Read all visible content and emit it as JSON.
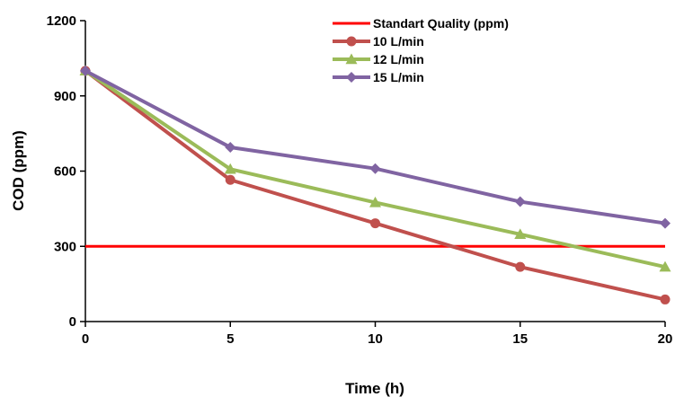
{
  "chart_data": {
    "type": "line",
    "title": "",
    "xlabel": "Time (h)",
    "ylabel": "COD (ppm)",
    "x": [
      0,
      5,
      10,
      15,
      20
    ],
    "xlim": [
      0,
      20
    ],
    "ylim": [
      0,
      1200
    ],
    "xticks": [
      0,
      5,
      10,
      15,
      20
    ],
    "yticks": [
      0,
      300,
      600,
      900,
      1200
    ],
    "grid": false,
    "legend_position": "top-right",
    "reference_line": {
      "name": "Standart Quality (ppm)",
      "value": 300,
      "color": "#ff0000"
    },
    "series": [
      {
        "name": "10 L/min",
        "values": [
          1000,
          565,
          392,
          218,
          88
        ],
        "color": "#c0504d",
        "marker": "circle"
      },
      {
        "name": "12 L/min",
        "values": [
          1000,
          608,
          475,
          348,
          218
        ],
        "color": "#9bbb59",
        "marker": "triangle"
      },
      {
        "name": "15 L/min",
        "values": [
          1000,
          695,
          610,
          478,
          392
        ],
        "color": "#8064a2",
        "marker": "diamond"
      }
    ]
  }
}
